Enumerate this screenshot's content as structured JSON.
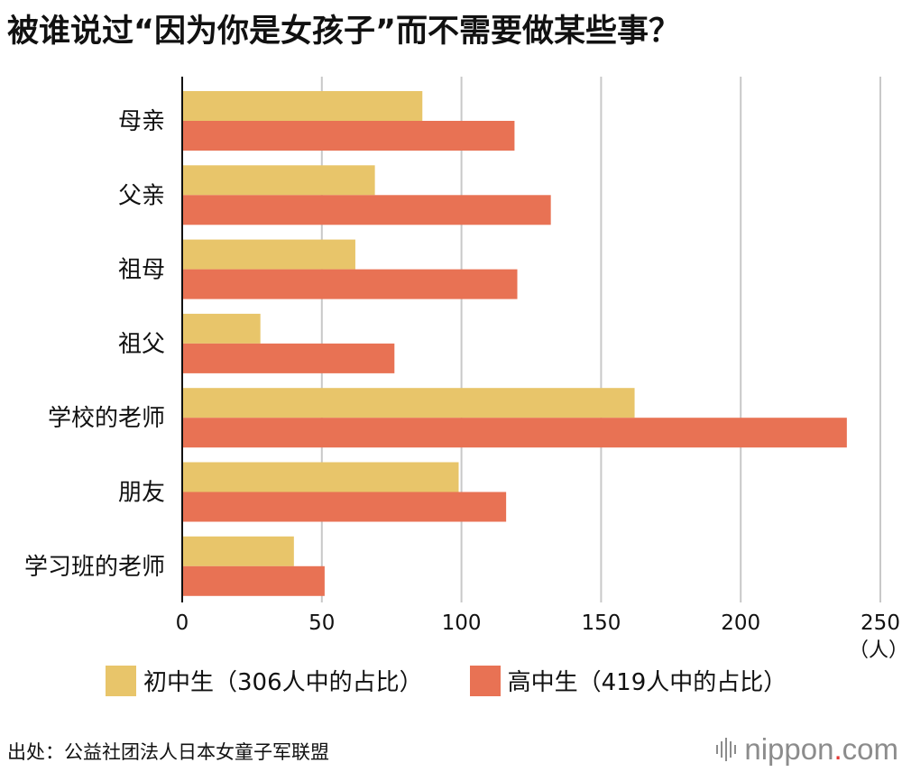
{
  "title": "被谁说过“因为你是女孩子”而不需要做某些事？",
  "source": "出处：公益社团法人日本女童子军联盟",
  "logo": {
    "name": "nippon",
    "dot": ".",
    "tld": "com"
  },
  "colors": {
    "junior": "#e8c56a",
    "senior": "#e87254",
    "grid": "#c8c8c8",
    "axis": "#111111"
  },
  "chart_data": {
    "type": "bar",
    "orientation": "horizontal",
    "categories": [
      "母亲",
      "父亲",
      "祖母",
      "祖父",
      "学校的老师",
      "朋友",
      "学习班的老师"
    ],
    "series": [
      {
        "name": "初中生（306人中的占比）",
        "values": [
          86,
          69,
          62,
          28,
          162,
          99,
          40
        ]
      },
      {
        "name": "高中生（419人中的占比）",
        "values": [
          119,
          132,
          120,
          76,
          238,
          116,
          51
        ]
      }
    ],
    "xlim": [
      0,
      250
    ],
    "xticks": [
      "0",
      "50",
      "100",
      "150",
      "200",
      "250"
    ],
    "xunit": "（人）",
    "grid": true,
    "legend_position": "bottom"
  }
}
